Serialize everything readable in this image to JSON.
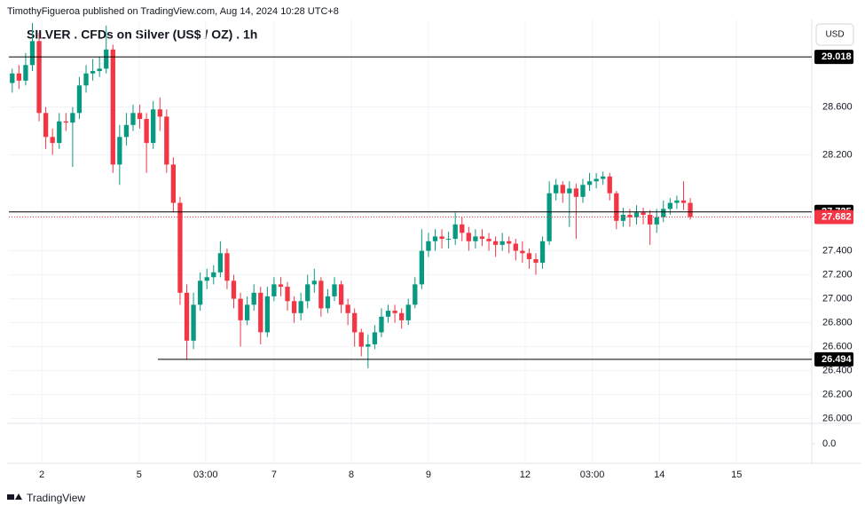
{
  "header": {
    "publisher": "TimothyFigueroa published on TradingView.com, Aug 14, 2024 10:28 UTC+8",
    "currency": "USD",
    "footer": "TradingView"
  },
  "chart_data": {
    "type": "candlestick",
    "title": "SILVER . CFDs on Silver (US$ / OZ) . 1h",
    "open": [
      28.8,
      28.88,
      28.82,
      28.95,
      29.15,
      28.55,
      28.35,
      28.3,
      28.48,
      28.47,
      28.55,
      28.78,
      28.88,
      28.9,
      28.92,
      29.08,
      28.12,
      28.35,
      28.45,
      28.55,
      28.5,
      28.3,
      28.58,
      28.52,
      28.12,
      27.8,
      27.05,
      26.65,
      26.95,
      27.15,
      27.18,
      27.22,
      27.38,
      27.15,
      27.0,
      26.82,
      26.95,
      27.05,
      26.72,
      27.02,
      27.12,
      27.1,
      26.98,
      26.88,
      26.98,
      27.12,
      27.15,
      26.92,
      27.02,
      27.12,
      26.95,
      26.88,
      26.72,
      26.6,
      26.62,
      26.72,
      26.85,
      26.9,
      26.88,
      26.82,
      26.95,
      27.12,
      27.4,
      27.48,
      27.52,
      27.5,
      27.5,
      27.62,
      27.55,
      27.48,
      27.52,
      27.5,
      27.48,
      27.45,
      27.48,
      27.46,
      27.4,
      27.38,
      27.33,
      27.3,
      27.48,
      27.88,
      27.95,
      27.88,
      27.92,
      27.85,
      27.95,
      27.98,
      28.0,
      28.02,
      27.88,
      27.65,
      27.7,
      27.68,
      27.72,
      27.7,
      27.62,
      27.68,
      27.75,
      27.8,
      27.82,
      27.8
    ],
    "high": [
      28.92,
      28.95,
      29.05,
      29.3,
      29.22,
      28.6,
      28.42,
      28.55,
      28.55,
      28.6,
      28.85,
      28.95,
      29.0,
      29.02,
      29.28,
      29.12,
      28.45,
      28.55,
      28.62,
      28.62,
      28.55,
      28.65,
      28.68,
      28.58,
      28.18,
      27.85,
      27.12,
      27.05,
      27.22,
      27.25,
      27.28,
      27.48,
      27.42,
      27.2,
      27.05,
      27.02,
      27.12,
      27.1,
      27.1,
      27.18,
      27.18,
      27.14,
      27.02,
      27.05,
      27.2,
      27.25,
      27.18,
      27.08,
      27.18,
      27.15,
      27.0,
      26.92,
      26.75,
      26.7,
      26.78,
      26.92,
      26.95,
      26.95,
      26.92,
      27.0,
      27.18,
      27.58,
      27.55,
      27.58,
      27.58,
      27.56,
      27.72,
      27.68,
      27.6,
      27.58,
      27.58,
      27.55,
      27.52,
      27.55,
      27.52,
      27.5,
      27.48,
      27.42,
      27.38,
      27.52,
      27.98,
      28.0,
      27.98,
      27.98,
      27.96,
      28.0,
      28.05,
      28.05,
      28.06,
      28.05,
      27.9,
      27.76,
      27.75,
      27.78,
      27.76,
      27.74,
      27.75,
      27.82,
      27.84,
      27.86,
      27.98,
      27.84
    ],
    "low": [
      28.72,
      28.75,
      28.78,
      28.9,
      28.48,
      28.25,
      28.2,
      28.25,
      28.4,
      28.1,
      28.5,
      28.72,
      28.82,
      28.85,
      28.88,
      28.05,
      27.95,
      28.28,
      28.4,
      28.42,
      28.05,
      28.25,
      28.4,
      28.05,
      27.72,
      26.95,
      26.49,
      26.58,
      26.9,
      27.08,
      27.12,
      27.18,
      27.08,
      26.92,
      26.6,
      26.78,
      26.9,
      26.62,
      26.68,
      26.98,
      27.02,
      26.9,
      26.8,
      26.82,
      26.92,
      27.05,
      26.85,
      26.88,
      26.98,
      26.88,
      26.78,
      26.6,
      26.52,
      26.42,
      26.58,
      26.68,
      26.8,
      26.8,
      26.75,
      26.78,
      26.92,
      27.08,
      27.35,
      27.4,
      27.42,
      27.42,
      27.45,
      27.48,
      27.4,
      27.42,
      27.44,
      27.4,
      27.35,
      27.4,
      27.38,
      27.32,
      27.3,
      27.25,
      27.2,
      27.25,
      27.45,
      27.82,
      27.8,
      27.6,
      27.5,
      27.8,
      27.9,
      27.92,
      27.95,
      27.82,
      27.58,
      27.6,
      27.6,
      27.62,
      27.62,
      27.45,
      27.55,
      27.64,
      27.7,
      27.75,
      27.74,
      27.66
    ],
    "close": [
      28.88,
      28.82,
      28.95,
      29.15,
      28.55,
      28.35,
      28.3,
      28.48,
      28.47,
      28.55,
      28.78,
      28.88,
      28.9,
      28.92,
      29.08,
      28.12,
      28.35,
      28.45,
      28.55,
      28.5,
      28.3,
      28.58,
      28.52,
      28.12,
      27.8,
      27.05,
      26.65,
      26.95,
      27.15,
      27.18,
      27.22,
      27.38,
      27.15,
      27.0,
      26.82,
      26.95,
      27.05,
      26.72,
      27.02,
      27.12,
      27.1,
      26.98,
      26.88,
      26.98,
      27.12,
      27.15,
      26.92,
      27.02,
      27.12,
      26.95,
      26.88,
      26.72,
      26.6,
      26.62,
      26.72,
      26.85,
      26.9,
      26.88,
      26.82,
      26.95,
      27.12,
      27.4,
      27.48,
      27.52,
      27.5,
      27.5,
      27.62,
      27.55,
      27.48,
      27.52,
      27.5,
      27.48,
      27.45,
      27.48,
      27.46,
      27.4,
      27.38,
      27.33,
      27.3,
      27.48,
      27.88,
      27.95,
      27.88,
      27.92,
      27.85,
      27.95,
      27.98,
      28.0,
      28.02,
      27.88,
      27.65,
      27.7,
      27.68,
      27.72,
      27.7,
      27.62,
      27.68,
      27.75,
      27.8,
      27.82,
      27.8,
      27.682
    ],
    "up_color": "#089981",
    "down_color": "#f23645",
    "ylim": [
      25.96,
      29.33
    ],
    "yticks": [
      {
        "value": 26,
        "label": "26.000"
      },
      {
        "value": 26.2,
        "label": "26.200"
      },
      {
        "value": 26.4,
        "label": "26.400"
      },
      {
        "value": 26.6,
        "label": "26.600"
      },
      {
        "value": 26.8,
        "label": "26.800"
      },
      {
        "value": 27,
        "label": "27.000"
      },
      {
        "value": 27.2,
        "label": "27.200"
      },
      {
        "value": 27.4,
        "label": "27.400"
      },
      {
        "value": 28.2,
        "label": "28.200"
      },
      {
        "value": 28.6,
        "label": "28.600"
      }
    ],
    "xlim": [
      0,
      119.6
    ],
    "xticks": [
      {
        "value": 4.9,
        "label": "2"
      },
      {
        "value": 19.4,
        "label": "5"
      },
      {
        "value": 29.3,
        "label": "03:00"
      },
      {
        "value": 39.5,
        "label": "7"
      },
      {
        "value": 51.0,
        "label": "8"
      },
      {
        "value": 62.5,
        "label": "9"
      },
      {
        "value": 76.9,
        "label": "12"
      },
      {
        "value": 86.9,
        "label": "03:00"
      },
      {
        "value": 96.9,
        "label": "14"
      },
      {
        "value": 108.4,
        "label": "15"
      }
    ],
    "price_lines": [
      {
        "value": 29.018,
        "color": "#000000",
        "x_start": 0
      },
      {
        "value": 27.725,
        "color": "#000000",
        "x_start": 0
      },
      {
        "value": 26.494,
        "color": "#000000",
        "x_start": 22.2
      },
      {
        "value": 27.682,
        "color": "#f23645",
        "x_start": 0,
        "dotted": true
      }
    ],
    "lower_pane": {
      "yticks": [
        {
          "value": 0,
          "label": "0.0"
        }
      ]
    }
  }
}
